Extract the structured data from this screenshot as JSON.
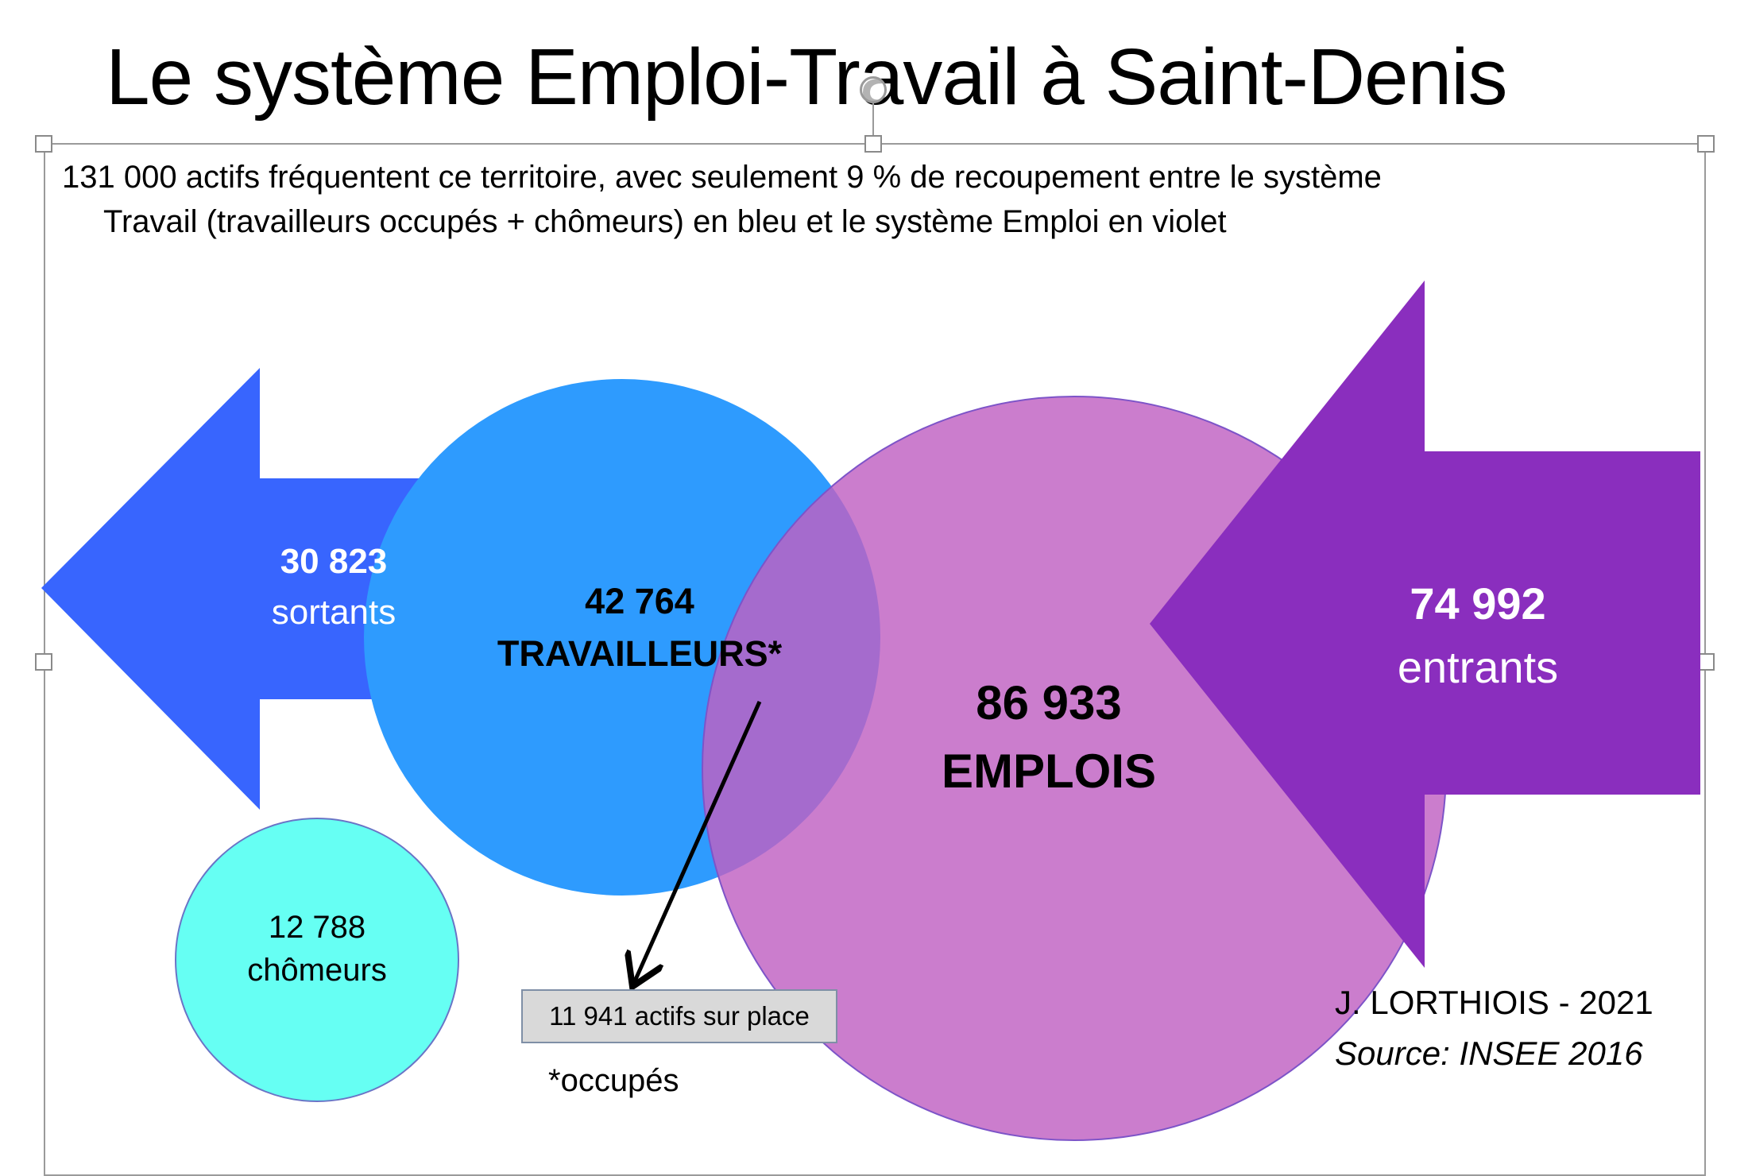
{
  "title": "Le système Emploi-Travail à Saint-Denis",
  "subtitle": {
    "line1": "131 000 actifs fréquentent ce territoire, avec seulement 9 % de recoupement entre le système",
    "line2": "Travail (travailleurs occupés + chômeurs) en bleu et le système Emploi en violet"
  },
  "sortants": {
    "value": "30 823",
    "label": "sortants"
  },
  "travailleurs": {
    "value": "42 764",
    "label": "TRAVAILLEURS*"
  },
  "emplois": {
    "value": "86 933",
    "label": "EMPLOIS"
  },
  "entrants": {
    "value": "74 992",
    "label": "entrants"
  },
  "chomeurs": {
    "value": "12 788",
    "label": "chômeurs"
  },
  "sur_place": "11 941 actifs sur place",
  "note": "*occupés",
  "credit": {
    "author": "J. LORTHIOIS - 2021",
    "source": "Source: INSEE 2016"
  },
  "colors": {
    "sortants_arrow": "#3865fe",
    "travailleurs_circle": "#2e9bfe",
    "emplois_circle": "#c060c2",
    "entrants_arrow": "#8a2ebe",
    "chomeurs_circle": "#66fff3"
  }
}
